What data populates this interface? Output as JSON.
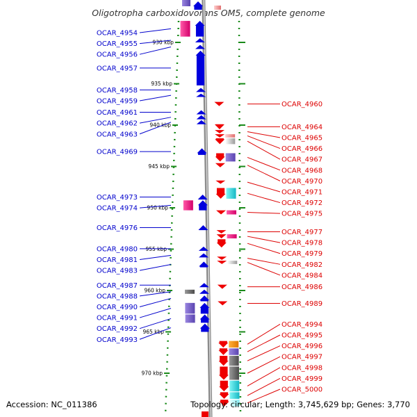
{
  "title": "Oligotropha carboxidovorans OM5, complete genome",
  "accession": "Accession: NC_011386",
  "topology": "Topology: circular; Length: 3,745,629 bp; Genes: 3,770",
  "colors": {
    "forward": "#0000dd",
    "reverse": "#ee0000",
    "forward_label": "#0000cc",
    "reverse_label": "#dd0000",
    "backbone": "#999999",
    "tick": "#1a8a1a"
  },
  "ruler": {
    "unit": "kbp",
    "marks": [
      {
        "kbp": 930,
        "label": "930 kbp"
      },
      {
        "kbp": 935,
        "label": "935 kbp"
      },
      {
        "kbp": 940,
        "label": "940 kbp"
      },
      {
        "kbp": 945,
        "label": "945 kbp"
      },
      {
        "kbp": 950,
        "label": "950 kbp"
      },
      {
        "kbp": 955,
        "label": "955 kbp"
      },
      {
        "kbp": 960,
        "label": "960 kbp"
      },
      {
        "kbp": 965,
        "label": "965 kbp"
      },
      {
        "kbp": 970,
        "label": "970 kbp"
      }
    ]
  },
  "forward_genes": [
    {
      "label": "OCAR_4954",
      "start": 927.4,
      "end": 929.3,
      "cog": "pink"
    },
    {
      "label": "OCAR_4955",
      "start": 929.5,
      "end": 930.0,
      "cog": ""
    },
    {
      "label": "OCAR_4956",
      "start": 930.3,
      "end": 930.8,
      "cog": ""
    },
    {
      "label": "OCAR_4957",
      "start": 931.0,
      "end": 935.2,
      "cog": ""
    },
    {
      "label": "OCAR_4958",
      "start": 935.5,
      "end": 936.0,
      "cog": ""
    },
    {
      "label": "OCAR_4959",
      "start": 936.2,
      "end": 936.6,
      "cog": ""
    },
    {
      "label": "OCAR_4961",
      "start": 938.2,
      "end": 938.7,
      "cog": ""
    },
    {
      "label": "OCAR_4962",
      "start": 938.8,
      "end": 939.3,
      "cog": ""
    },
    {
      "label": "OCAR_4963",
      "start": 939.4,
      "end": 939.9,
      "cog": ""
    },
    {
      "label": "OCAR_4969",
      "start": 942.8,
      "end": 943.6,
      "cog": ""
    },
    {
      "label": "OCAR_4973",
      "start": 948.4,
      "end": 949.0,
      "cog": ""
    },
    {
      "label": "OCAR_4974",
      "start": 949.1,
      "end": 950.3,
      "cog": "pink"
    },
    {
      "label": "OCAR_4976",
      "start": 952.1,
      "end": 952.7,
      "cog": ""
    },
    {
      "label": "OCAR_4980",
      "start": 954.7,
      "end": 955.2,
      "cog": ""
    },
    {
      "label": "OCAR_4981",
      "start": 955.5,
      "end": 956.0,
      "cog": ""
    },
    {
      "label": "OCAR_4983",
      "start": 956.5,
      "end": 957.2,
      "cog": ""
    },
    {
      "label": "OCAR_4987",
      "start": 959.1,
      "end": 959.6,
      "cog": ""
    },
    {
      "label": "OCAR_4988",
      "start": 959.9,
      "end": 960.4,
      "cog": "gray"
    },
    {
      "label": "OCAR_4990",
      "start": 960.6,
      "end": 961.3,
      "cog": ""
    },
    {
      "label": "OCAR_4991",
      "start": 961.5,
      "end": 962.8,
      "cog": "purple"
    },
    {
      "label": "OCAR_4992",
      "start": 962.9,
      "end": 963.9,
      "cog": "purple"
    },
    {
      "label": "OCAR_4993",
      "start": 964.0,
      "end": 965.0,
      "cog": ""
    }
  ],
  "reverse_genes": [
    {
      "label": "OCAR_4960",
      "start": 937.2,
      "end": 937.7,
      "cog": ""
    },
    {
      "label": "OCAR_4964",
      "start": 939.9,
      "end": 940.5,
      "cog": ""
    },
    {
      "label": "OCAR_4965",
      "start": 940.6,
      "end": 941.0,
      "cog": ""
    },
    {
      "label": "OCAR_4966",
      "start": 941.1,
      "end": 941.5,
      "cog": "lightred"
    },
    {
      "label": "OCAR_4967",
      "start": 941.6,
      "end": 942.3,
      "cog": "lightgray"
    },
    {
      "label": "OCAR_4968",
      "start": 943.4,
      "end": 944.4,
      "cog": "purple"
    },
    {
      "label": "OCAR_4970",
      "start": 944.6,
      "end": 945.1,
      "cog": ""
    },
    {
      "label": "OCAR_4971",
      "start": 946.7,
      "end": 947.1,
      "cog": ""
    },
    {
      "label": "OCAR_4972",
      "start": 947.6,
      "end": 948.9,
      "cog": "cyan"
    },
    {
      "label": "OCAR_4975",
      "start": 950.3,
      "end": 950.8,
      "cog": "pink"
    },
    {
      "label": "OCAR_4977",
      "start": 952.7,
      "end": 953.1,
      "cog": ""
    },
    {
      "label": "OCAR_4978",
      "start": 953.2,
      "end": 953.7,
      "cog": "pink"
    },
    {
      "label": "OCAR_4979",
      "start": 953.8,
      "end": 954.8,
      "cog": ""
    },
    {
      "label": "OCAR_4982",
      "start": 955.9,
      "end": 956.3,
      "cog": ""
    },
    {
      "label": "OCAR_4984",
      "start": 956.4,
      "end": 956.8,
      "cog": "lightgray"
    },
    {
      "label": "OCAR_4986",
      "start": 959.3,
      "end": 959.8,
      "cog": ""
    },
    {
      "label": "OCAR_4989",
      "start": 961.3,
      "end": 961.8,
      "cog": ""
    },
    {
      "label": "OCAR_4994",
      "start": 966.1,
      "end": 966.9,
      "cog": "orange"
    },
    {
      "label": "OCAR_4995",
      "start": 967.0,
      "end": 967.8,
      "cog": "purple"
    },
    {
      "label": "OCAR_4996",
      "start": 967.9,
      "end": 969.1,
      "cog": "gray"
    },
    {
      "label": "OCAR_4997",
      "start": 969.2,
      "end": 970.8,
      "cog": "gray"
    },
    {
      "label": "OCAR_4998",
      "start": 970.9,
      "end": 972.2,
      "cog": "cyan"
    },
    {
      "label": "OCAR_4999",
      "start": 972.3,
      "end": 973.1,
      "cog": "cyan"
    },
    {
      "label": "OCAR_5000",
      "start": 973.2,
      "end": 974.0,
      "cog": "lightcyan"
    }
  ]
}
